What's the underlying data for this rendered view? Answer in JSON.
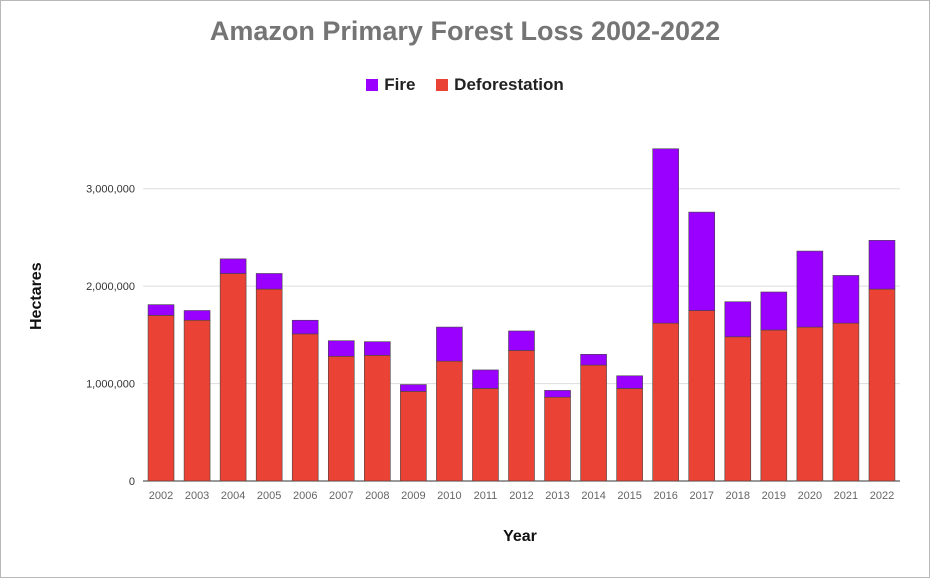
{
  "chart_data": {
    "type": "bar",
    "stacked": true,
    "title": "Amazon Primary Forest Loss 2002-2022",
    "xlabel": "Year",
    "ylabel": "Hectares",
    "ylim": [
      0,
      3500000
    ],
    "yticks": [
      0,
      1000000,
      2000000,
      3000000
    ],
    "ytick_labels": [
      "0",
      "1,000,000",
      "2,000,000",
      "3,000,000"
    ],
    "grid": true,
    "legend_position": "top",
    "categories": [
      "2002",
      "2003",
      "2004",
      "2005",
      "2006",
      "2007",
      "2008",
      "2009",
      "2010",
      "2011",
      "2012",
      "2013",
      "2014",
      "2015",
      "2016",
      "2017",
      "2018",
      "2019",
      "2020",
      "2021",
      "2022"
    ],
    "series": [
      {
        "name": "Deforestation",
        "color": "#ea4335",
        "values": [
          1700000,
          1650000,
          2130000,
          1970000,
          1510000,
          1280000,
          1290000,
          920000,
          1230000,
          950000,
          1340000,
          860000,
          1190000,
          950000,
          1620000,
          1750000,
          1480000,
          1550000,
          1580000,
          1620000,
          1970000
        ]
      },
      {
        "name": "Fire",
        "color": "#9900ff",
        "values": [
          110000,
          100000,
          150000,
          160000,
          140000,
          160000,
          140000,
          70000,
          350000,
          190000,
          200000,
          70000,
          110000,
          130000,
          1790000,
          1010000,
          360000,
          390000,
          780000,
          490000,
          500000
        ]
      }
    ]
  }
}
